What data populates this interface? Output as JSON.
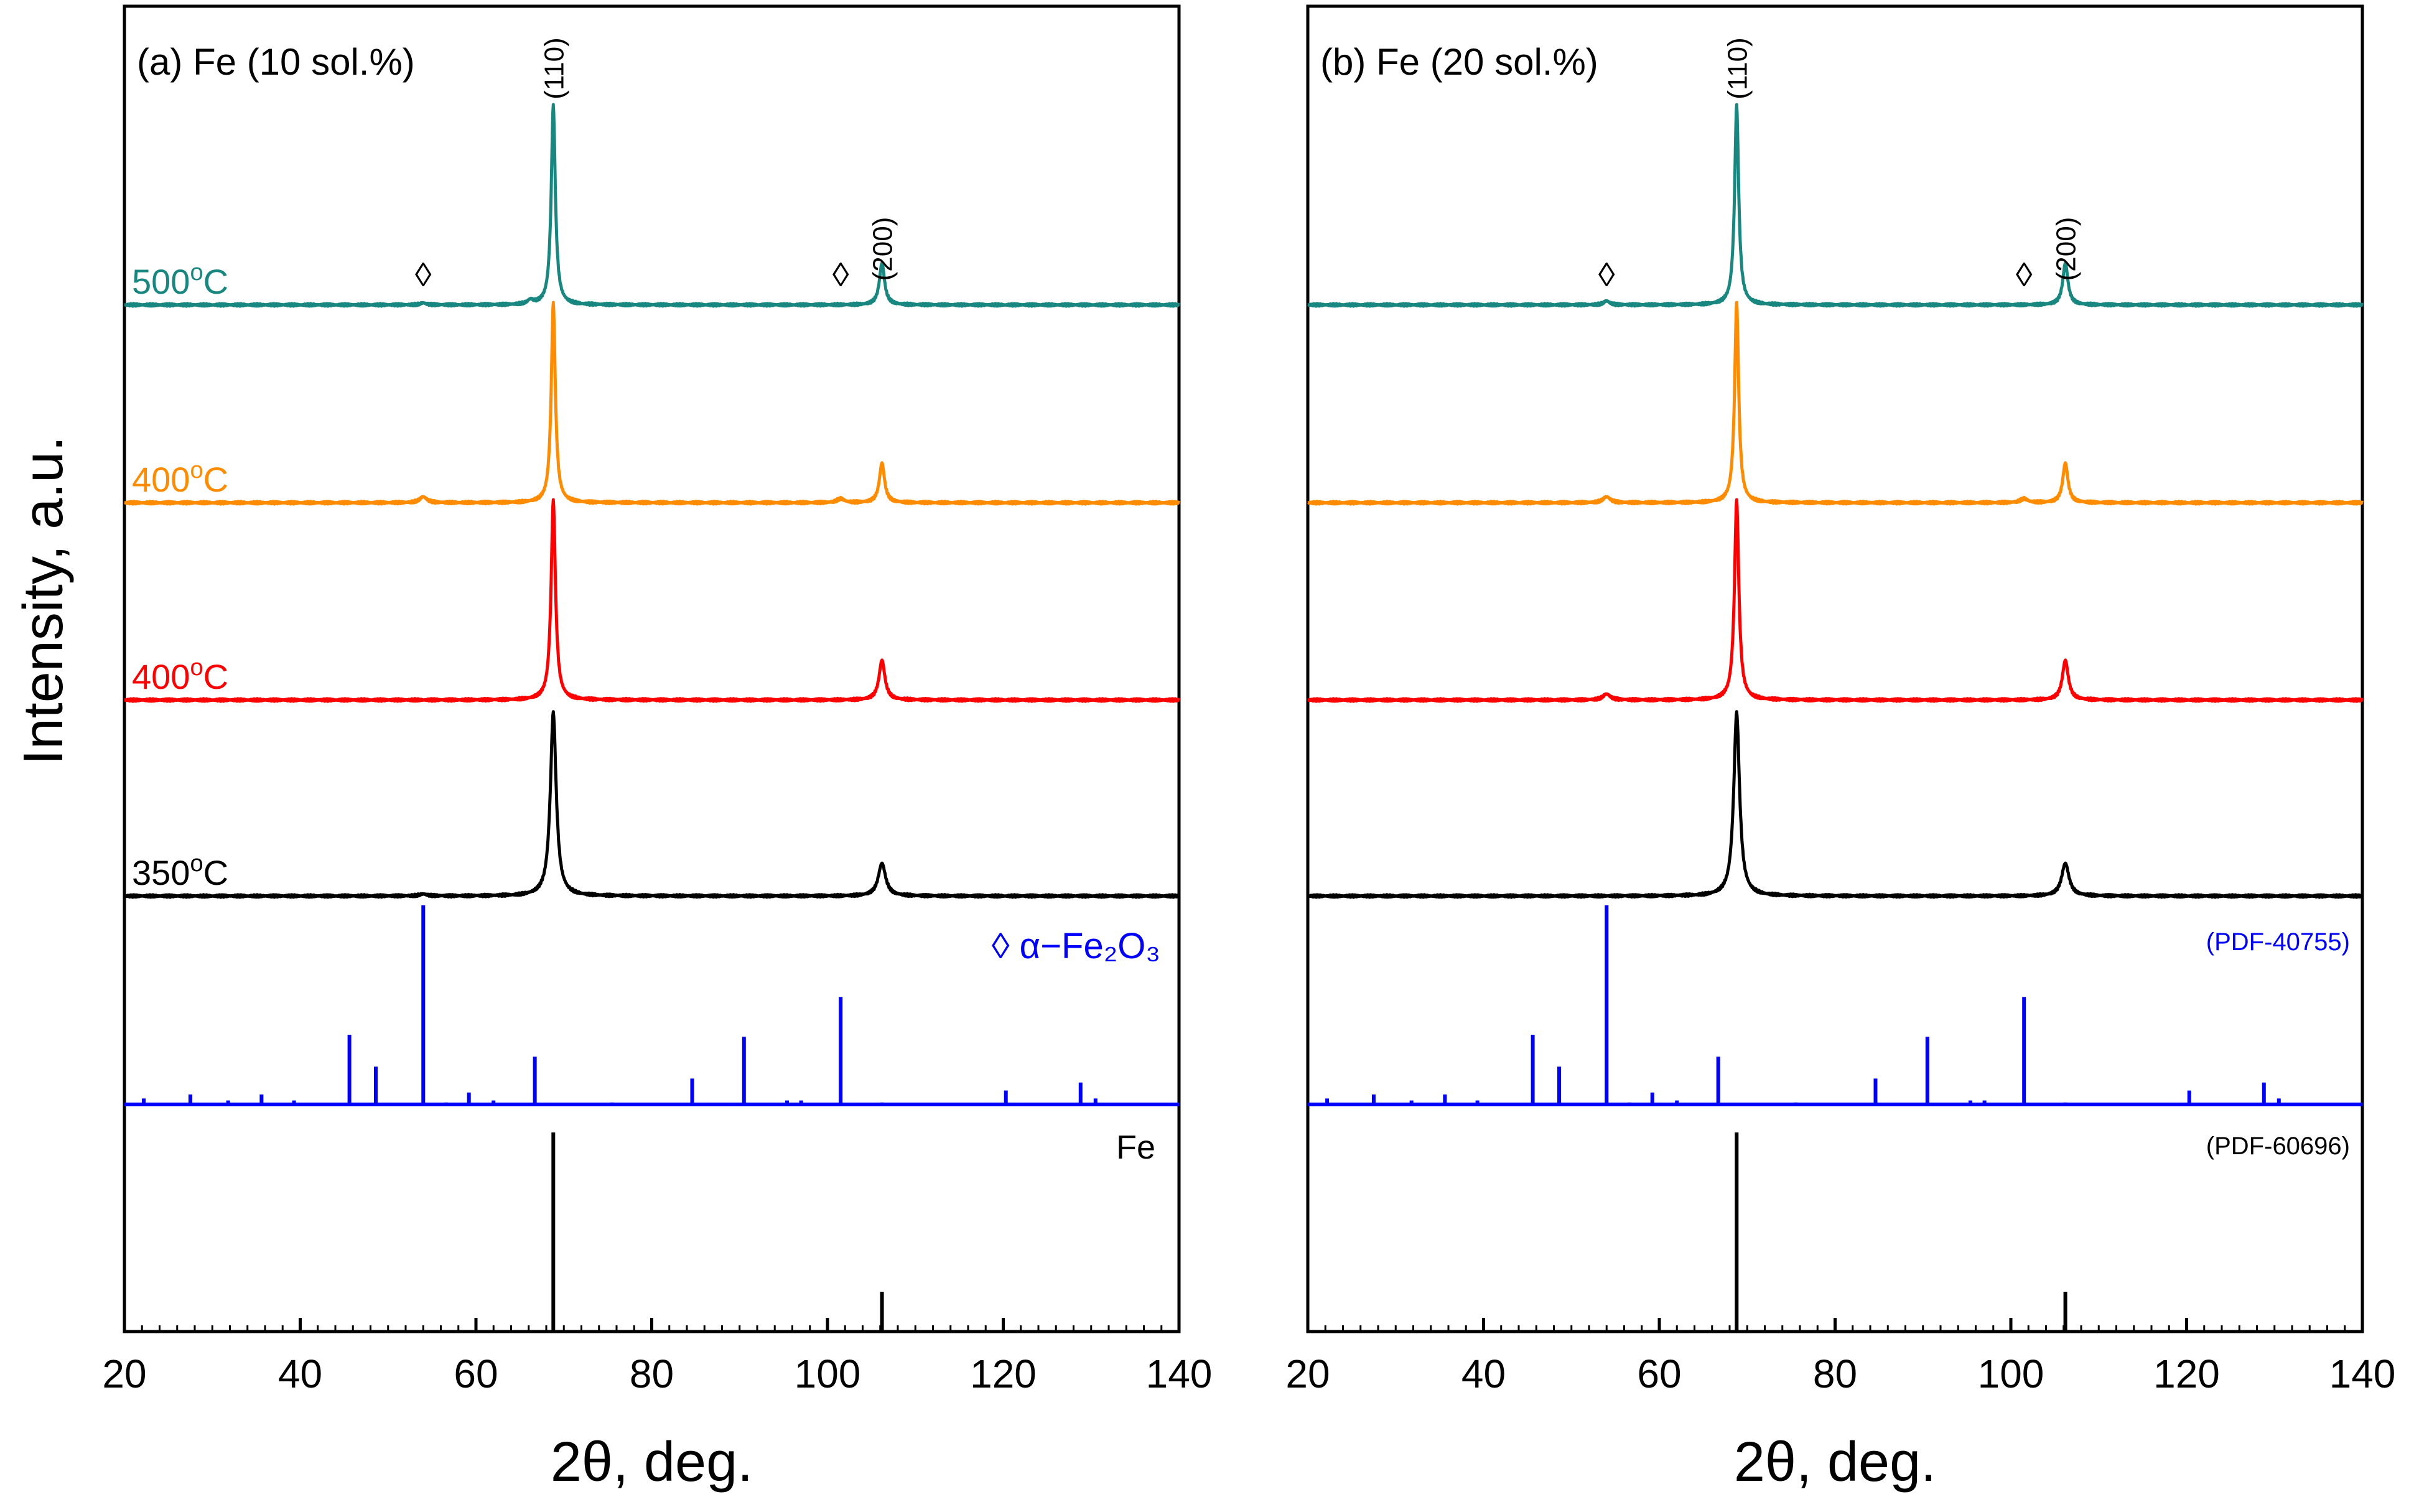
{
  "figure": {
    "ylabel": "Intensity, a.u.",
    "colors": {
      "c500": "#17877F",
      "c400o": "#FF8C00",
      "c400r": "#FF0000",
      "c350": "#000000",
      "hematite": "#0000FF",
      "iron": "#000000",
      "axis": "#000000"
    }
  },
  "chart_data": [
    {
      "type": "line",
      "panel": "a",
      "title": "(a) Fe (10 sol.%)",
      "xlabel": "2θ, deg.",
      "xlim": [
        20,
        140
      ],
      "xticks": [
        "20",
        "40",
        "60",
        "80",
        "100",
        "120",
        "140"
      ],
      "peak_labels": [
        {
          "text": "(110)",
          "x": 68.8
        },
        {
          "text": "(200)",
          "x": 106.2
        }
      ],
      "hematite_marker": "◊",
      "hematite_marker_positions": [
        54.0,
        101.5
      ],
      "series": [
        {
          "name": "500°C",
          "label_main": "500",
          "label_sup": "o",
          "label_tail": "C",
          "color_key": "c500",
          "peaks": [
            {
              "x": 68.8,
              "h": 1.0,
              "w": 0.28
            },
            {
              "x": 106.2,
              "h": 0.21,
              "w": 0.35
            },
            {
              "x": 54.0,
              "h": 0.01,
              "w": 0.4
            },
            {
              "x": 66.2,
              "h": 0.02,
              "w": 0.4
            }
          ]
        },
        {
          "name": "400°C",
          "label_main": "400",
          "label_sup": "o",
          "label_tail": "C",
          "color_key": "c400o",
          "peaks": [
            {
              "x": 68.8,
              "h": 1.0,
              "w": 0.28
            },
            {
              "x": 106.2,
              "h": 0.2,
              "w": 0.35
            },
            {
              "x": 54.0,
              "h": 0.03,
              "w": 0.5
            },
            {
              "x": 101.5,
              "h": 0.02,
              "w": 0.5
            }
          ]
        },
        {
          "name": "400°C",
          "label_main": "400",
          "label_sup": "o",
          "label_tail": "C",
          "color_key": "c400r",
          "peaks": [
            {
              "x": 68.8,
              "h": 1.0,
              "w": 0.3
            },
            {
              "x": 106.2,
              "h": 0.2,
              "w": 0.4
            }
          ]
        },
        {
          "name": "350°C",
          "label_main": "350",
          "label_sup": "o",
          "label_tail": "C",
          "color_key": "c350",
          "peaks": [
            {
              "x": 68.8,
              "h": 0.95,
              "w": 0.4
            },
            {
              "x": 106.2,
              "h": 0.17,
              "w": 0.5
            },
            {
              "x": 54.0,
              "h": 0.01,
              "w": 0.5
            }
          ]
        }
      ],
      "reference_hematite": {
        "label": "α−Fe₂O₃",
        "marker": "◊",
        "lines": [
          [
            22.2,
            0.03
          ],
          [
            27.5,
            0.05
          ],
          [
            31.8,
            0.02
          ],
          [
            35.6,
            0.05
          ],
          [
            39.3,
            0.02
          ],
          [
            45.6,
            0.35
          ],
          [
            48.6,
            0.19
          ],
          [
            54.0,
            1.0
          ],
          [
            56.6,
            0.01
          ],
          [
            59.2,
            0.06
          ],
          [
            62.0,
            0.02
          ],
          [
            66.7,
            0.24
          ],
          [
            75.5,
            0.01
          ],
          [
            84.6,
            0.13
          ],
          [
            90.5,
            0.34
          ],
          [
            95.4,
            0.02
          ],
          [
            97.0,
            0.02
          ],
          [
            101.5,
            0.54
          ],
          [
            106.2,
            0.01
          ],
          [
            120.3,
            0.07
          ],
          [
            128.8,
            0.11
          ],
          [
            130.5,
            0.03
          ]
        ]
      },
      "reference_iron": {
        "label": "Fe",
        "lines": [
          [
            68.8,
            1.0
          ],
          [
            106.2,
            0.2
          ]
        ]
      }
    },
    {
      "type": "line",
      "panel": "b",
      "title": "(b) Fe (20 sol.%)",
      "xlabel": "2θ, deg.",
      "xlim": [
        20,
        140
      ],
      "xticks": [
        "20",
        "40",
        "60",
        "80",
        "100",
        "120",
        "140"
      ],
      "peak_labels": [
        {
          "text": "(110)",
          "x": 68.8
        },
        {
          "text": "(200)",
          "x": 106.2
        }
      ],
      "hematite_marker": "◊",
      "hematite_marker_positions": [
        54.0,
        101.5
      ],
      "series": [
        {
          "name": "500°C",
          "color_key": "c500",
          "peaks": [
            {
              "x": 68.8,
              "h": 1.0,
              "w": 0.28
            },
            {
              "x": 106.2,
              "h": 0.21,
              "w": 0.35
            },
            {
              "x": 54.0,
              "h": 0.02,
              "w": 0.4
            }
          ]
        },
        {
          "name": "400°C",
          "color_key": "c400o",
          "peaks": [
            {
              "x": 68.8,
              "h": 1.0,
              "w": 0.28
            },
            {
              "x": 106.2,
              "h": 0.2,
              "w": 0.35
            },
            {
              "x": 54.0,
              "h": 0.03,
              "w": 0.5
            },
            {
              "x": 101.5,
              "h": 0.02,
              "w": 0.5
            }
          ]
        },
        {
          "name": "400°C",
          "color_key": "c400r",
          "peaks": [
            {
              "x": 68.8,
              "h": 1.0,
              "w": 0.3
            },
            {
              "x": 106.2,
              "h": 0.2,
              "w": 0.4
            },
            {
              "x": 54.0,
              "h": 0.03,
              "w": 0.5
            }
          ]
        },
        {
          "name": "350°C",
          "color_key": "c350",
          "peaks": [
            {
              "x": 68.8,
              "h": 0.95,
              "w": 0.4
            },
            {
              "x": 106.2,
              "h": 0.17,
              "w": 0.5
            }
          ]
        }
      ],
      "reference_hematite": {
        "label": "(PDF-40755)",
        "lines": [
          [
            22.2,
            0.03
          ],
          [
            27.5,
            0.05
          ],
          [
            31.8,
            0.02
          ],
          [
            35.6,
            0.05
          ],
          [
            39.3,
            0.02
          ],
          [
            45.6,
            0.35
          ],
          [
            48.6,
            0.19
          ],
          [
            54.0,
            1.0
          ],
          [
            56.6,
            0.01
          ],
          [
            59.2,
            0.06
          ],
          [
            62.0,
            0.02
          ],
          [
            66.7,
            0.24
          ],
          [
            75.5,
            0.01
          ],
          [
            84.6,
            0.13
          ],
          [
            90.5,
            0.34
          ],
          [
            95.4,
            0.02
          ],
          [
            97.0,
            0.02
          ],
          [
            101.5,
            0.54
          ],
          [
            106.2,
            0.01
          ],
          [
            120.3,
            0.07
          ],
          [
            128.8,
            0.11
          ],
          [
            130.5,
            0.03
          ]
        ]
      },
      "reference_iron": {
        "label": "(PDF-60696)",
        "lines": [
          [
            68.8,
            1.0
          ],
          [
            106.2,
            0.2
          ]
        ]
      }
    }
  ]
}
